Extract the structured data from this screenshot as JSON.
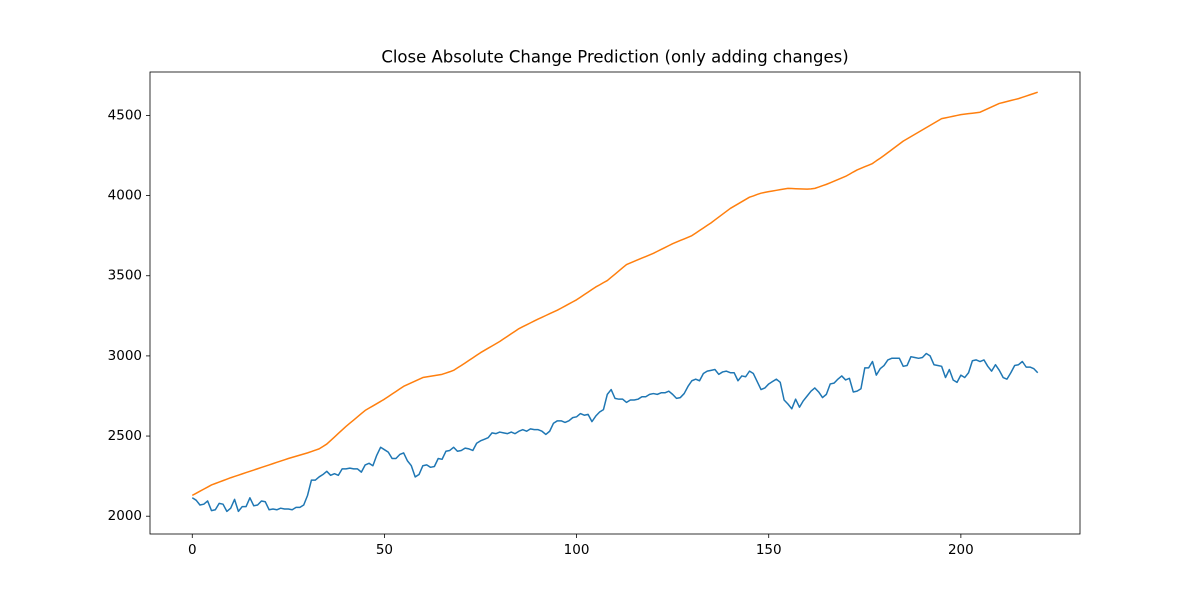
{
  "chart_data": {
    "type": "line",
    "title": "Close Absolute Change Prediction (only adding changes)",
    "x": [
      0,
      1,
      2,
      3,
      4,
      5,
      6,
      7,
      8,
      9,
      10,
      11,
      12,
      13,
      14,
      15,
      16,
      17,
      18,
      19,
      20,
      21,
      22,
      23,
      24,
      25,
      26,
      27,
      28,
      29,
      30,
      31,
      32,
      33,
      34,
      35,
      36,
      37,
      38,
      39,
      40,
      41,
      42,
      43,
      44,
      45,
      46,
      47,
      48,
      49,
      50,
      51,
      52,
      53,
      54,
      55,
      56,
      57,
      58,
      59,
      60,
      61,
      62,
      63,
      64,
      65,
      66,
      67,
      68,
      69,
      70,
      71,
      72,
      73,
      74,
      75,
      76,
      77,
      78,
      79,
      80,
      81,
      82,
      83,
      84,
      85,
      86,
      87,
      88,
      89,
      90,
      91,
      92,
      93,
      94,
      95,
      96,
      97,
      98,
      99,
      100,
      101,
      102,
      103,
      104,
      105,
      106,
      107,
      108,
      109,
      110,
      111,
      112,
      113,
      114,
      115,
      116,
      117,
      118,
      119,
      120,
      121,
      122,
      123,
      124,
      125,
      126,
      127,
      128,
      129,
      130,
      131,
      132,
      133,
      134,
      135,
      136,
      137,
      138,
      139,
      140,
      141,
      142,
      143,
      144,
      145,
      146,
      147,
      148,
      149,
      150,
      151,
      152,
      153,
      154,
      155,
      156,
      157,
      158,
      159,
      160,
      161,
      162,
      163,
      164,
      165,
      166,
      167,
      168,
      169,
      170,
      171,
      172,
      173,
      174,
      175,
      176,
      177,
      178,
      179,
      180,
      181,
      182,
      183,
      184,
      185,
      186,
      187,
      188,
      189,
      190,
      191,
      192,
      193,
      194,
      195,
      196,
      197,
      198,
      199,
      200,
      201,
      202,
      203,
      204,
      205,
      206,
      207,
      208,
      209,
      210,
      211,
      212,
      213,
      214,
      215,
      216,
      217,
      218,
      219,
      220
    ],
    "series": [
      {
        "color": "#1f77b4",
        "values": [
          2115,
          2100,
          2070,
          2075,
          2095,
          2035,
          2040,
          2080,
          2075,
          2030,
          2050,
          2105,
          2030,
          2060,
          2060,
          2115,
          2065,
          2070,
          2095,
          2090,
          2040,
          2045,
          2040,
          2050,
          2045,
          2045,
          2040,
          2055,
          2055,
          2070,
          2130,
          2225,
          2225,
          2245,
          2260,
          2280,
          2255,
          2265,
          2255,
          2295,
          2295,
          2300,
          2295,
          2295,
          2275,
          2320,
          2330,
          2315,
          2380,
          2430,
          2415,
          2400,
          2360,
          2360,
          2385,
          2395,
          2345,
          2315,
          2245,
          2260,
          2315,
          2320,
          2305,
          2310,
          2360,
          2355,
          2405,
          2410,
          2430,
          2405,
          2410,
          2425,
          2420,
          2410,
          2455,
          2470,
          2480,
          2490,
          2520,
          2515,
          2525,
          2520,
          2515,
          2525,
          2515,
          2530,
          2540,
          2530,
          2545,
          2540,
          2540,
          2530,
          2510,
          2530,
          2580,
          2595,
          2595,
          2585,
          2595,
          2615,
          2620,
          2640,
          2630,
          2635,
          2590,
          2625,
          2650,
          2665,
          2760,
          2790,
          2735,
          2730,
          2730,
          2710,
          2725,
          2725,
          2730,
          2745,
          2745,
          2760,
          2765,
          2760,
          2770,
          2770,
          2780,
          2760,
          2735,
          2740,
          2765,
          2810,
          2845,
          2855,
          2845,
          2890,
          2905,
          2910,
          2915,
          2885,
          2900,
          2905,
          2895,
          2895,
          2845,
          2875,
          2870,
          2905,
          2890,
          2840,
          2790,
          2800,
          2825,
          2840,
          2855,
          2835,
          2725,
          2700,
          2670,
          2730,
          2680,
          2720,
          2750,
          2780,
          2800,
          2775,
          2740,
          2760,
          2825,
          2830,
          2855,
          2875,
          2850,
          2860,
          2775,
          2780,
          2795,
          2925,
          2925,
          2965,
          2880,
          2920,
          2940,
          2975,
          2985,
          2985,
          2985,
          2935,
          2940,
          2995,
          2990,
          2985,
          2990,
          3015,
          3000,
          2945,
          2940,
          2935,
          2865,
          2915,
          2850,
          2835,
          2880,
          2865,
          2895,
          2970,
          2975,
          2965,
          2975,
          2935,
          2905,
          2945,
          2910,
          2865,
          2855,
          2895,
          2940,
          2945,
          2965,
          2930,
          2930,
          2920,
          2895
        ]
      },
      {
        "color": "#ff7f0e",
        "values": [
          2130,
          2143,
          2156,
          2169,
          2182,
          2195,
          2204,
          2213,
          2222,
          2231,
          2240,
          2248,
          2256,
          2264,
          2272,
          2280,
          2288,
          2296,
          2304,
          2312,
          2320,
          2328,
          2336,
          2344,
          2352,
          2360,
          2367,
          2374,
          2381,
          2388,
          2395,
          2403,
          2412,
          2420,
          2435,
          2450,
          2472,
          2494,
          2516,
          2538,
          2560,
          2580,
          2600,
          2620,
          2640,
          2660,
          2674,
          2688,
          2702,
          2716,
          2730,
          2746,
          2762,
          2778,
          2794,
          2810,
          2821,
          2832,
          2843,
          2854,
          2865,
          2869,
          2873,
          2877,
          2881,
          2885,
          2893,
          2901,
          2910,
          2925,
          2940,
          2956,
          2972,
          2988,
          3004,
          3020,
          3034,
          3048,
          3062,
          3076,
          3090,
          3106,
          3122,
          3138,
          3154,
          3170,
          3182,
          3194,
          3206,
          3218,
          3230,
          3241,
          3252,
          3263,
          3274,
          3285,
          3298,
          3311,
          3324,
          3337,
          3350,
          3366,
          3382,
          3398,
          3414,
          3430,
          3443,
          3457,
          3470,
          3490,
          3510,
          3530,
          3550,
          3570,
          3580,
          3590,
          3600,
          3610,
          3620,
          3630,
          3640,
          3652,
          3664,
          3676,
          3688,
          3700,
          3710,
          3720,
          3730,
          3740,
          3750,
          3766,
          3782,
          3798,
          3814,
          3830,
          3848,
          3866,
          3884,
          3902,
          3920,
          3934,
          3948,
          3962,
          3976,
          3990,
          3998,
          4007,
          4015,
          4020,
          4025,
          4029,
          4033,
          4037,
          4041,
          4045,
          4044,
          4043,
          4042,
          4041,
          4040,
          4042,
          4045,
          4053,
          4062,
          4070,
          4080,
          4090,
          4100,
          4110,
          4120,
          4133,
          4147,
          4160,
          4170,
          4180,
          4190,
          4200,
          4217,
          4233,
          4250,
          4268,
          4286,
          4304,
          4322,
          4340,
          4354,
          4368,
          4382,
          4396,
          4410,
          4424,
          4438,
          4452,
          4466,
          4480,
          4485,
          4490,
          4495,
          4500,
          4505,
          4508,
          4511,
          4514,
          4517,
          4520,
          4531,
          4542,
          4553,
          4564,
          4575,
          4581,
          4587,
          4593,
          4599,
          4605,
          4613,
          4621,
          4629,
          4637,
          4645
        ]
      }
    ],
    "xlim": [
      -11,
      231
    ],
    "xticks": [
      0,
      50,
      100,
      150,
      200
    ],
    "ylim": [
      1889,
      4771
    ],
    "yticks": [
      2000,
      2500,
      3000,
      3500,
      4000,
      4500
    ]
  }
}
